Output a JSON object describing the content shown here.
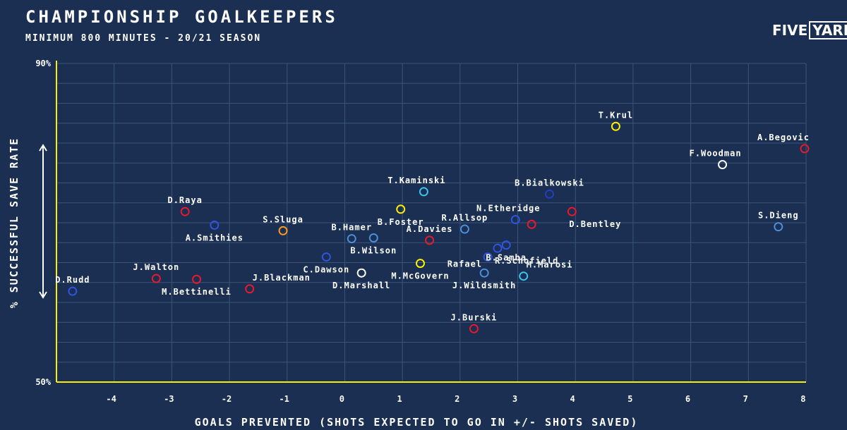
{
  "header": {
    "title": "CHAMPIONSHIP GOALKEEPERS",
    "subtitle": "MINIMUM 800 MINUTES - 20/21 SEASON",
    "logo_left": "FIVE",
    "logo_right": "YARDS"
  },
  "chart_data": {
    "type": "scatter",
    "xlabel": "GOALS PREVENTED (SHOTS EXPECTED TO GO IN +/- SHOTS SAVED)",
    "ylabel": "% SUCCESSFUL SAVE RATE",
    "xlim": [
      -4.95,
      8.05
    ],
    "ylim": [
      50,
      90
    ],
    "x_ticks": [
      -4,
      -3,
      -2,
      -1,
      0,
      1,
      2,
      3,
      4,
      5,
      6,
      7,
      8
    ],
    "y_ticks": [
      {
        "value": 90,
        "label": "90%"
      },
      {
        "value": 50,
        "label": "50%"
      }
    ],
    "grid": true,
    "colors": {
      "background": "#1a2f52",
      "axis": "#ffee00",
      "grid": "#3b5578",
      "red": "#e8192c",
      "blue": "#2f55e0",
      "lightblue": "#4a8ed8",
      "cyan": "#38c4ee",
      "yellow": "#ffee00",
      "orange": "#ff9a1a",
      "white": "#ffffff",
      "navy": "#1f3fc0"
    },
    "points": [
      {
        "name": "T.Krul",
        "x": 4.75,
        "y": 82.1,
        "color": "yellow",
        "label_pos": "above"
      },
      {
        "name": "A.Begovic",
        "x": 8.05,
        "y": 79.3,
        "color": "red",
        "label_pos": "above-left"
      },
      {
        "name": "F.Woodman",
        "x": 6.6,
        "y": 77.3,
        "color": "white",
        "label_pos": "above-left"
      },
      {
        "name": "T.Kaminski",
        "x": 1.42,
        "y": 73.9,
        "color": "cyan",
        "label_pos": "above-left"
      },
      {
        "name": "B.Bialkowski",
        "x": 3.6,
        "y": 73.6,
        "color": "navy",
        "label_pos": "above"
      },
      {
        "name": "D.Raya",
        "x": -2.72,
        "y": 71.4,
        "color": "red",
        "label_pos": "above"
      },
      {
        "name": "B.Foster",
        "x": 1.02,
        "y": 71.7,
        "color": "yellow",
        "label_pos": "below"
      },
      {
        "name": "D.Bentley",
        "x": 3.99,
        "y": 71.4,
        "color": "red",
        "label_pos": "below-right"
      },
      {
        "name": "N.Etheridge",
        "x": 3.01,
        "y": 70.4,
        "color": "blue",
        "label_pos": "above-left"
      },
      {
        "name": "R.Allsop",
        "x": 2.13,
        "y": 69.2,
        "color": "lightblue",
        "label_pos": "above"
      },
      {
        "name": "S.Dieng",
        "x": 7.57,
        "y": 69.5,
        "color": "lightblue",
        "label_pos": "above"
      },
      {
        "name": "D.Bentley-dot",
        "x": 3.29,
        "y": 69.8,
        "color": "red",
        "label_pos": "none"
      },
      {
        "name": "A.Smithies",
        "x": -2.21,
        "y": 69.7,
        "color": "blue",
        "label_pos": "below"
      },
      {
        "name": "S.Sluga",
        "x": -1.02,
        "y": 69.0,
        "color": "orange",
        "label_pos": "above"
      },
      {
        "name": "A.Davies",
        "x": 1.52,
        "y": 67.8,
        "color": "red",
        "label_pos": "above"
      },
      {
        "name": "B.Samba",
        "x": 2.85,
        "y": 67.2,
        "color": "blue",
        "label_pos": "below"
      },
      {
        "name": "B.Hamer",
        "x": 0.17,
        "y": 68.0,
        "color": "lightblue",
        "label_pos": "above"
      },
      {
        "name": "B.Wilson",
        "x": 0.55,
        "y": 68.1,
        "color": "lightblue",
        "label_pos": "below"
      },
      {
        "name": "R.Schofield",
        "x": 2.7,
        "y": 66.8,
        "color": "blue",
        "label_pos": "below-right"
      },
      {
        "name": "Rafael",
        "x": 2.53,
        "y": 65.7,
        "color": "blue",
        "label_pos": "below-left"
      },
      {
        "name": "C.Dawson",
        "x": -0.27,
        "y": 65.7,
        "color": "blue",
        "label_pos": "below"
      },
      {
        "name": "M.McGovern",
        "x": 1.36,
        "y": 64.9,
        "color": "yellow",
        "label_pos": "below"
      },
      {
        "name": "D.Marshall",
        "x": 0.34,
        "y": 63.7,
        "color": "white",
        "label_pos": "below"
      },
      {
        "name": "J.Wildsmith",
        "x": 2.47,
        "y": 63.7,
        "color": "lightblue",
        "label_pos": "below"
      },
      {
        "name": "M.Marosi",
        "x": 3.15,
        "y": 63.3,
        "color": "cyan",
        "label_pos": "above-right"
      },
      {
        "name": "J.Walton",
        "x": -3.22,
        "y": 63.0,
        "color": "red",
        "label_pos": "above"
      },
      {
        "name": "M.Bettinelli",
        "x": -2.52,
        "y": 62.9,
        "color": "red",
        "label_pos": "below"
      },
      {
        "name": "J.Blackman",
        "x": -1.6,
        "y": 61.7,
        "color": "red",
        "label_pos": "above-right"
      },
      {
        "name": "D.Rudd",
        "x": -4.67,
        "y": 61.4,
        "color": "blue",
        "label_pos": "above"
      },
      {
        "name": "J.Burski",
        "x": 2.29,
        "y": 56.7,
        "color": "red",
        "label_pos": "above"
      }
    ]
  }
}
